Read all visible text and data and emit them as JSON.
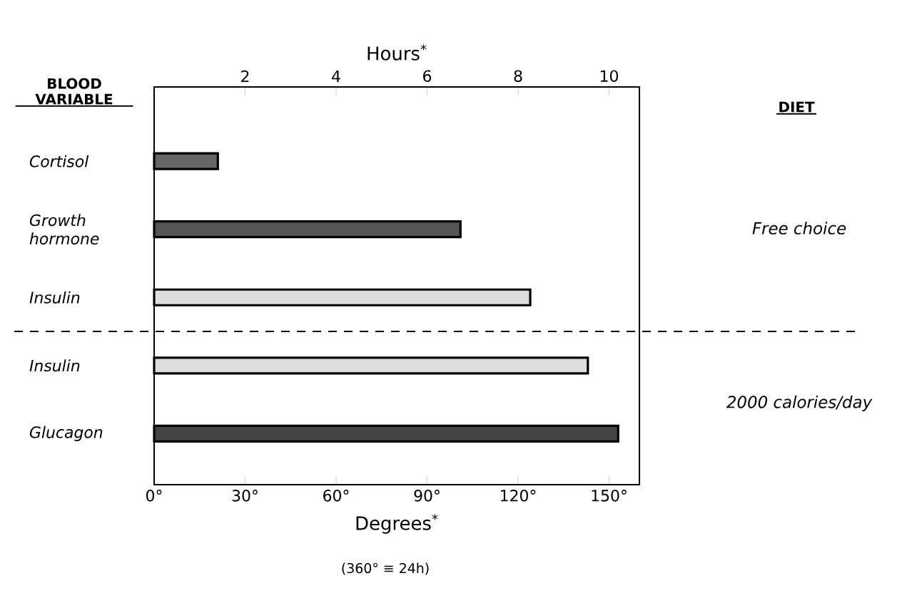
{
  "chart_data": {
    "type": "bar",
    "orientation": "horizontal",
    "ylabel": "BLOOD VARIABLE",
    "xlabel": "Degrees$^{*}$",
    "x2label": "Hours$^{*}$",
    "categories": [
      "Cortisol",
      "Growth hormone",
      "Insulin",
      "Insulin",
      "Glucagon"
    ],
    "values": [
      21,
      101,
      124,
      143,
      153
    ],
    "colors": [
      "#666666",
      "#555555",
      "#dddddd",
      "#dddddd",
      "#444444"
    ],
    "xlim": [
      0,
      160
    ],
    "xticks": [
      {
        "value": 0,
        "label": "0°"
      },
      {
        "value": 30,
        "label": "30°"
      },
      {
        "value": 60,
        "label": "60°"
      },
      {
        "value": 90,
        "label": "90°"
      },
      {
        "value": 120,
        "label": "120°"
      },
      {
        "value": 150,
        "label": "150°"
      }
    ],
    "x2lim": [
      0,
      10.667
    ],
    "x2ticks": [
      2,
      4,
      6,
      8,
      10
    ],
    "annotations": [
      "DIET",
      "Free choice",
      "2000 calories/day",
      "(360° ≡ 24h)"
    ]
  }
}
